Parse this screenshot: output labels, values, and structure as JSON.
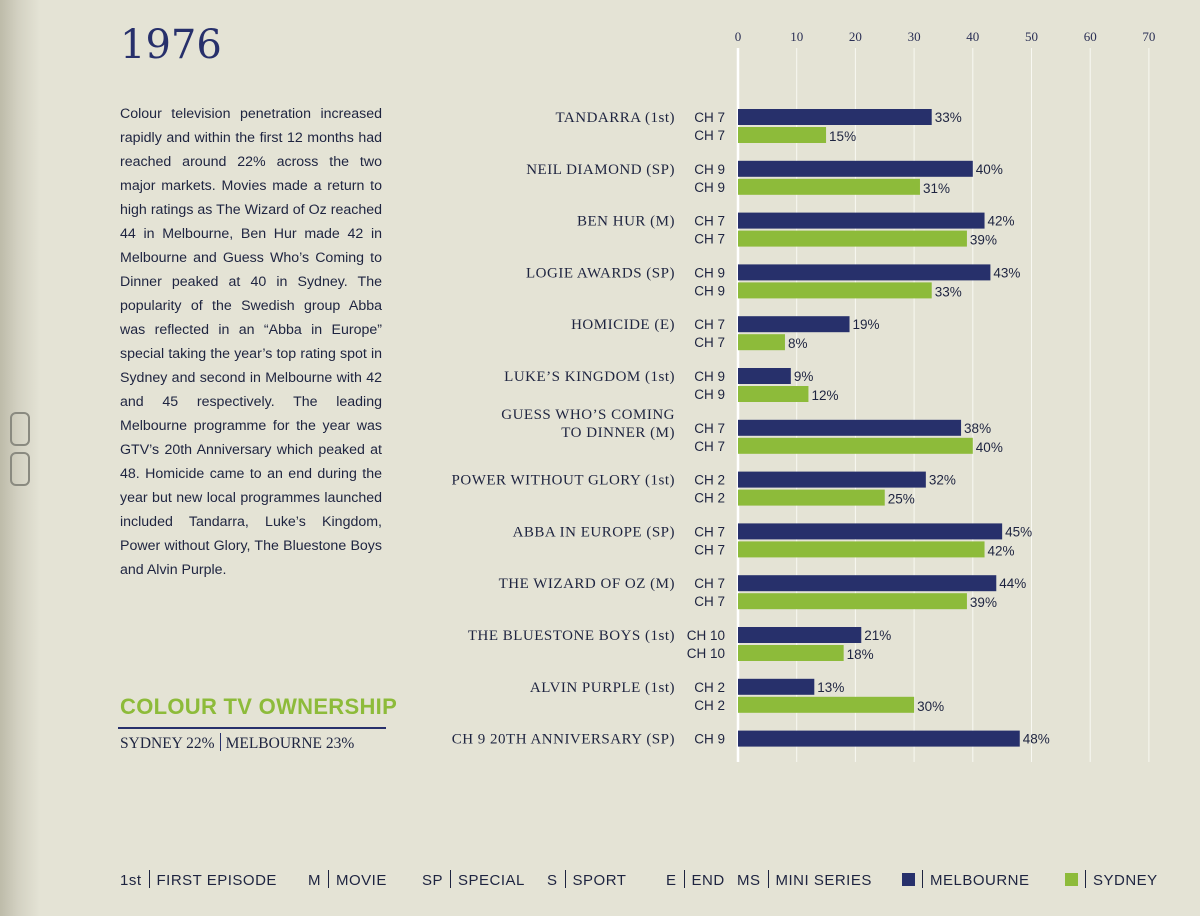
{
  "year": "1976",
  "intro": "Colour television penetration increased rapidly and within the first 12 months had reached around 22% across the two major markets. Movies made a return to high ratings as The Wizard of Oz reached 44 in Melbourne, Ben Hur made 42 in Melbourne and Guess Who’s Coming to Dinner peaked at 40 in Sydney. The popularity of the Swedish group Abba was reflected in an “Abba in Europe” special taking the year’s top rating spot in Sydney and second in Melbourne with 42 and 45 respectively. The leading Melbourne programme for the year was GTV’s 20th Anniversary which peaked at 48. Homicide came to an end during the year but new local programmes launched included Tandarra, Luke’s Kingdom, Power without Glory, The Bluestone Boys and Alvin Purple.",
  "ownership": {
    "title": "COLOUR TV OWNERSHIP",
    "sydney": "SYDNEY 22%",
    "melbourne": "MELBOURNE 23%"
  },
  "colors": {
    "melbourne": "#27306b",
    "sydney": "#8dbb3a"
  },
  "chart_data": {
    "type": "bar",
    "orientation": "horizontal",
    "title": "1976",
    "xlim": [
      0,
      70
    ],
    "xticks": [
      0,
      10,
      20,
      30,
      40,
      50,
      60,
      70
    ],
    "grid": true,
    "value_suffix": "%",
    "series_names": [
      "Melbourne",
      "Sydney"
    ],
    "categories": [
      {
        "label": [
          "TANDARRA (1st)"
        ],
        "melbourne": {
          "channel": "CH 7",
          "value": 33
        },
        "sydney": {
          "channel": "CH 7",
          "value": 15
        }
      },
      {
        "label": [
          "NEIL DIAMOND (SP)"
        ],
        "melbourne": {
          "channel": "CH 9",
          "value": 40
        },
        "sydney": {
          "channel": "CH 9",
          "value": 31
        }
      },
      {
        "label": [
          "BEN HUR (M)"
        ],
        "melbourne": {
          "channel": "CH 7",
          "value": 42
        },
        "sydney": {
          "channel": "CH 7",
          "value": 39
        }
      },
      {
        "label": [
          "LOGIE AWARDS (SP)"
        ],
        "melbourne": {
          "channel": "CH 9",
          "value": 43
        },
        "sydney": {
          "channel": "CH 9",
          "value": 33
        }
      },
      {
        "label": [
          "HOMICIDE (E)"
        ],
        "melbourne": {
          "channel": "CH 7",
          "value": 19
        },
        "sydney": {
          "channel": "CH 7",
          "value": 8
        }
      },
      {
        "label": [
          "LUKE’S KINGDOM (1st)"
        ],
        "melbourne": {
          "channel": "CH 9",
          "value": 9
        },
        "sydney": {
          "channel": "CH 9",
          "value": 12
        }
      },
      {
        "label": [
          "GUESS WHO’S COMING",
          "TO DINNER (M)"
        ],
        "melbourne": {
          "channel": "CH 7",
          "value": 38
        },
        "sydney": {
          "channel": "CH 7",
          "value": 40
        }
      },
      {
        "label": [
          "POWER WITHOUT GLORY (1st)"
        ],
        "melbourne": {
          "channel": "CH 2",
          "value": 32
        },
        "sydney": {
          "channel": "CH 2",
          "value": 25
        }
      },
      {
        "label": [
          "ABBA IN EUROPE (SP)"
        ],
        "melbourne": {
          "channel": "CH 7",
          "value": 45
        },
        "sydney": {
          "channel": "CH 7",
          "value": 42
        }
      },
      {
        "label": [
          "THE WIZARD OF OZ (M)"
        ],
        "melbourne": {
          "channel": "CH 7",
          "value": 44
        },
        "sydney": {
          "channel": "CH 7",
          "value": 39
        }
      },
      {
        "label": [
          "THE BLUESTONE BOYS (1st)"
        ],
        "melbourne": {
          "channel": "CH 10",
          "value": 21
        },
        "sydney": {
          "channel": "CH 10",
          "value": 18
        }
      },
      {
        "label": [
          "ALVIN PURPLE (1st)"
        ],
        "melbourne": {
          "channel": "CH 2",
          "value": 13
        },
        "sydney": {
          "channel": "CH 2",
          "value": 30
        }
      },
      {
        "label": [
          "CH 9 20TH ANNIVERSARY (SP)"
        ],
        "melbourne": {
          "channel": "CH 9",
          "value": 48
        },
        "sydney": null
      }
    ]
  },
  "legend": [
    {
      "key": "1st",
      "text": "FIRST EPISODE"
    },
    {
      "key": "M",
      "text": "MOVIE"
    },
    {
      "key": "SP",
      "text": "SPECIAL"
    },
    {
      "key": "S",
      "text": "SPORT"
    },
    {
      "key": "E",
      "text": "END"
    },
    {
      "key": "MS",
      "text": "MINI SERIES"
    },
    {
      "swatch": "melbourne",
      "text": "MELBOURNE"
    },
    {
      "swatch": "sydney",
      "text": "SYDNEY"
    }
  ]
}
